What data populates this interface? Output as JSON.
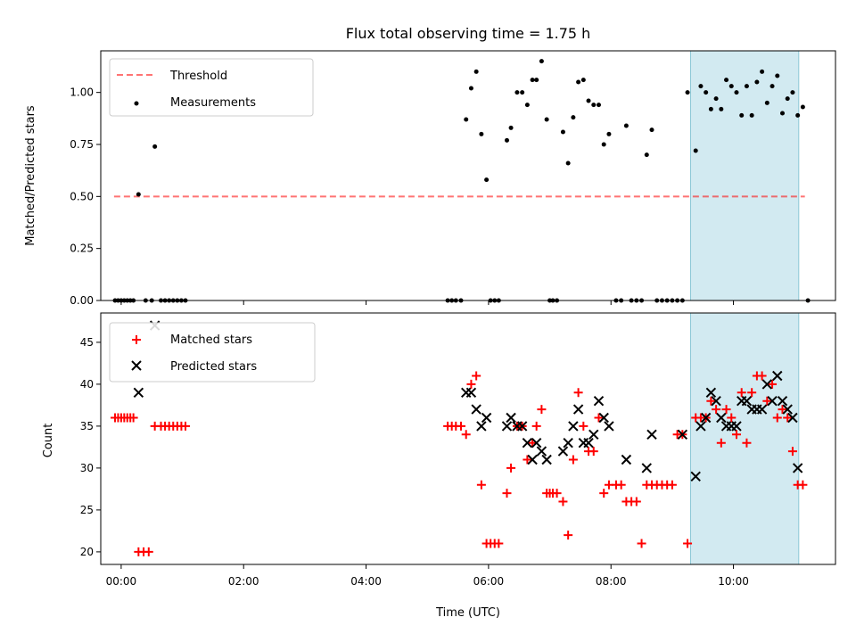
{
  "chart_data": [
    {
      "type": "scatter",
      "title": "Flux total observing time = 1.75 h",
      "xlabel": "",
      "ylabel": "Matched/Predicted stars",
      "xlim": [
        "23:40",
        "11:40"
      ],
      "ylim": [
        0,
        1.2
      ],
      "yticks": [
        "0.00",
        "0.25",
        "0.50",
        "0.75",
        "1.00"
      ],
      "grid": false,
      "legend_position": "top-left",
      "shaded_span": [
        "09:18",
        "11:04"
      ],
      "shaded_color": "#add8e6",
      "threshold": {
        "name": "Threshold",
        "value": 0.5,
        "x_range": [
          "23:53",
          "11:10"
        ],
        "color": "#ff0000",
        "style": "dashed"
      },
      "series": [
        {
          "name": "Measurements",
          "color": "#000000",
          "marker": "dot",
          "points": [
            [
              "23:54",
              0
            ],
            [
              "23:57",
              0
            ],
            [
              "00:00",
              0
            ],
            [
              "00:03",
              0
            ],
            [
              "00:06",
              0
            ],
            [
              "00:09",
              0
            ],
            [
              "00:12",
              0
            ],
            [
              "00:17",
              0.51
            ],
            [
              "00:24",
              0
            ],
            [
              "00:30",
              0
            ],
            [
              "00:33",
              0.74
            ],
            [
              "00:39",
              0
            ],
            [
              "00:43",
              0
            ],
            [
              "00:47",
              0
            ],
            [
              "00:51",
              0
            ],
            [
              "00:55",
              0
            ],
            [
              "00:59",
              0
            ],
            [
              "01:03",
              0
            ],
            [
              "05:20",
              0
            ],
            [
              "05:24",
              0
            ],
            [
              "05:28",
              0
            ],
            [
              "05:33",
              0
            ],
            [
              "05:38",
              0.87
            ],
            [
              "05:43",
              1.02
            ],
            [
              "05:48",
              1.1
            ],
            [
              "05:53",
              0.8
            ],
            [
              "05:58",
              0.58
            ],
            [
              "06:02",
              0
            ],
            [
              "06:06",
              0
            ],
            [
              "06:10",
              0
            ],
            [
              "06:18",
              0.77
            ],
            [
              "06:22",
              0.83
            ],
            [
              "06:28",
              1.0
            ],
            [
              "06:33",
              1.0
            ],
            [
              "06:38",
              0.94
            ],
            [
              "06:43",
              1.06
            ],
            [
              "06:47",
              1.06
            ],
            [
              "06:52",
              1.15
            ],
            [
              "06:57",
              0.87
            ],
            [
              "07:00",
              0
            ],
            [
              "07:03",
              0
            ],
            [
              "07:07",
              0
            ],
            [
              "07:13",
              0.81
            ],
            [
              "07:18",
              0.66
            ],
            [
              "07:23",
              0.88
            ],
            [
              "07:28",
              1.05
            ],
            [
              "07:33",
              1.06
            ],
            [
              "07:38",
              0.96
            ],
            [
              "07:43",
              0.94
            ],
            [
              "07:48",
              0.94
            ],
            [
              "07:53",
              0.75
            ],
            [
              "07:58",
              0.8
            ],
            [
              "08:05",
              0
            ],
            [
              "08:10",
              0
            ],
            [
              "08:15",
              0.84
            ],
            [
              "08:20",
              0
            ],
            [
              "08:25",
              0
            ],
            [
              "08:30",
              0
            ],
            [
              "08:35",
              0.7
            ],
            [
              "08:40",
              0.82
            ],
            [
              "08:45",
              0
            ],
            [
              "08:50",
              0
            ],
            [
              "08:55",
              0
            ],
            [
              "09:00",
              0
            ],
            [
              "09:05",
              0
            ],
            [
              "09:10",
              0
            ],
            [
              "09:15",
              1.0
            ],
            [
              "09:23",
              0.72
            ],
            [
              "09:28",
              1.03
            ],
            [
              "09:33",
              1.0
            ],
            [
              "09:38",
              0.92
            ],
            [
              "09:43",
              0.97
            ],
            [
              "09:48",
              0.92
            ],
            [
              "09:53",
              1.06
            ],
            [
              "09:58",
              1.03
            ],
            [
              "10:03",
              1.0
            ],
            [
              "10:08",
              0.89
            ],
            [
              "10:13",
              1.03
            ],
            [
              "10:18",
              0.89
            ],
            [
              "10:23",
              1.05
            ],
            [
              "10:28",
              1.1
            ],
            [
              "10:33",
              0.95
            ],
            [
              "10:38",
              1.03
            ],
            [
              "10:43",
              1.08
            ],
            [
              "10:48",
              0.9
            ],
            [
              "10:53",
              0.97
            ],
            [
              "10:58",
              1.0
            ],
            [
              "11:03",
              0.89
            ],
            [
              "11:08",
              0.93
            ],
            [
              "11:13",
              0
            ]
          ]
        }
      ],
      "xticks": [
        "00:00",
        "02:00",
        "04:00",
        "06:00",
        "08:00",
        "10:00"
      ],
      "show_xtick_labels": false
    },
    {
      "type": "scatter",
      "title": "",
      "xlabel": "Time (UTC)",
      "ylabel": "Count",
      "xlim": [
        "23:40",
        "11:40"
      ],
      "ylim": [
        18.5,
        48.5
      ],
      "yticks": [
        "20",
        "25",
        "30",
        "35",
        "40",
        "45"
      ],
      "xticks": [
        "00:00",
        "02:00",
        "04:00",
        "06:00",
        "08:00",
        "10:00"
      ],
      "grid": false,
      "legend_position": "top-left",
      "shaded_span": [
        "09:18",
        "11:04"
      ],
      "shaded_color": "#add8e6",
      "series": [
        {
          "name": "Matched stars",
          "color": "#ff0000",
          "marker": "plus",
          "points": [
            [
              "23:54",
              36
            ],
            [
              "23:57",
              36
            ],
            [
              "00:00",
              36
            ],
            [
              "00:03",
              36
            ],
            [
              "00:06",
              36
            ],
            [
              "00:09",
              36
            ],
            [
              "00:12",
              36
            ],
            [
              "00:17",
              20
            ],
            [
              "00:22",
              20
            ],
            [
              "00:27",
              20
            ],
            [
              "00:33",
              35
            ],
            [
              "00:39",
              35
            ],
            [
              "00:43",
              35
            ],
            [
              "00:47",
              35
            ],
            [
              "00:51",
              35
            ],
            [
              "00:55",
              35
            ],
            [
              "00:59",
              35
            ],
            [
              "01:03",
              35
            ],
            [
              "05:20",
              35
            ],
            [
              "05:24",
              35
            ],
            [
              "05:28",
              35
            ],
            [
              "05:33",
              35
            ],
            [
              "05:38",
              34
            ],
            [
              "05:43",
              40
            ],
            [
              "05:48",
              41
            ],
            [
              "05:53",
              28
            ],
            [
              "05:58",
              21
            ],
            [
              "06:02",
              21
            ],
            [
              "06:06",
              21
            ],
            [
              "06:10",
              21
            ],
            [
              "06:18",
              27
            ],
            [
              "06:22",
              30
            ],
            [
              "06:28",
              35
            ],
            [
              "06:33",
              35
            ],
            [
              "06:38",
              31
            ],
            [
              "06:43",
              33
            ],
            [
              "06:47",
              35
            ],
            [
              "06:52",
              37
            ],
            [
              "06:57",
              27
            ],
            [
              "07:00",
              27
            ],
            [
              "07:03",
              27
            ],
            [
              "07:07",
              27
            ],
            [
              "07:13",
              26
            ],
            [
              "07:18",
              22
            ],
            [
              "07:23",
              31
            ],
            [
              "07:28",
              39
            ],
            [
              "07:33",
              35
            ],
            [
              "07:38",
              32
            ],
            [
              "07:43",
              32
            ],
            [
              "07:48",
              36
            ],
            [
              "07:53",
              27
            ],
            [
              "07:58",
              28
            ],
            [
              "08:05",
              28
            ],
            [
              "08:10",
              28
            ],
            [
              "08:15",
              26
            ],
            [
              "08:20",
              26
            ],
            [
              "08:25",
              26
            ],
            [
              "08:30",
              21
            ],
            [
              "08:35",
              28
            ],
            [
              "08:40",
              28
            ],
            [
              "08:45",
              28
            ],
            [
              "08:50",
              28
            ],
            [
              "08:55",
              28
            ],
            [
              "09:00",
              28
            ],
            [
              "09:05",
              34
            ],
            [
              "09:10",
              34
            ],
            [
              "09:15",
              21
            ],
            [
              "09:23",
              36
            ],
            [
              "09:28",
              36
            ],
            [
              "09:33",
              36
            ],
            [
              "09:38",
              38
            ],
            [
              "09:43",
              37
            ],
            [
              "09:48",
              33
            ],
            [
              "09:53",
              37
            ],
            [
              "09:58",
              36
            ],
            [
              "10:03",
              34
            ],
            [
              "10:08",
              39
            ],
            [
              "10:13",
              33
            ],
            [
              "10:18",
              39
            ],
            [
              "10:23",
              41
            ],
            [
              "10:28",
              41
            ],
            [
              "10:33",
              38
            ],
            [
              "10:38",
              40
            ],
            [
              "10:43",
              36
            ],
            [
              "10:48",
              37
            ],
            [
              "10:53",
              36
            ],
            [
              "10:58",
              32
            ],
            [
              "11:03",
              28
            ],
            [
              "11:08",
              28
            ]
          ]
        },
        {
          "name": "Predicted stars",
          "color": "#000000",
          "marker": "x",
          "points": [
            [
              "00:17",
              39
            ],
            [
              "00:33",
              47
            ],
            [
              "05:38",
              39
            ],
            [
              "05:43",
              39
            ],
            [
              "05:48",
              37
            ],
            [
              "05:53",
              35
            ],
            [
              "05:58",
              36
            ],
            [
              "06:18",
              35
            ],
            [
              "06:22",
              36
            ],
            [
              "06:28",
              35
            ],
            [
              "06:33",
              35
            ],
            [
              "06:38",
              33
            ],
            [
              "06:43",
              31
            ],
            [
              "06:47",
              33
            ],
            [
              "06:52",
              32
            ],
            [
              "06:57",
              31
            ],
            [
              "07:13",
              32
            ],
            [
              "07:18",
              33
            ],
            [
              "07:23",
              35
            ],
            [
              "07:28",
              37
            ],
            [
              "07:33",
              33
            ],
            [
              "07:38",
              33
            ],
            [
              "07:43",
              34
            ],
            [
              "07:48",
              38
            ],
            [
              "07:53",
              36
            ],
            [
              "07:58",
              35
            ],
            [
              "08:15",
              31
            ],
            [
              "08:35",
              30
            ],
            [
              "08:40",
              34
            ],
            [
              "09:10",
              34
            ],
            [
              "09:23",
              29
            ],
            [
              "09:28",
              35
            ],
            [
              "09:33",
              36
            ],
            [
              "09:38",
              39
            ],
            [
              "09:43",
              38
            ],
            [
              "09:48",
              36
            ],
            [
              "09:53",
              35
            ],
            [
              "09:58",
              35
            ],
            [
              "10:03",
              35
            ],
            [
              "10:08",
              38
            ],
            [
              "10:13",
              38
            ],
            [
              "10:18",
              37
            ],
            [
              "10:23",
              37
            ],
            [
              "10:28",
              37
            ],
            [
              "10:33",
              40
            ],
            [
              "10:38",
              38
            ],
            [
              "10:43",
              41
            ],
            [
              "10:48",
              38
            ],
            [
              "10:53",
              37
            ],
            [
              "10:58",
              36
            ],
            [
              "11:03",
              30
            ]
          ]
        }
      ]
    }
  ]
}
